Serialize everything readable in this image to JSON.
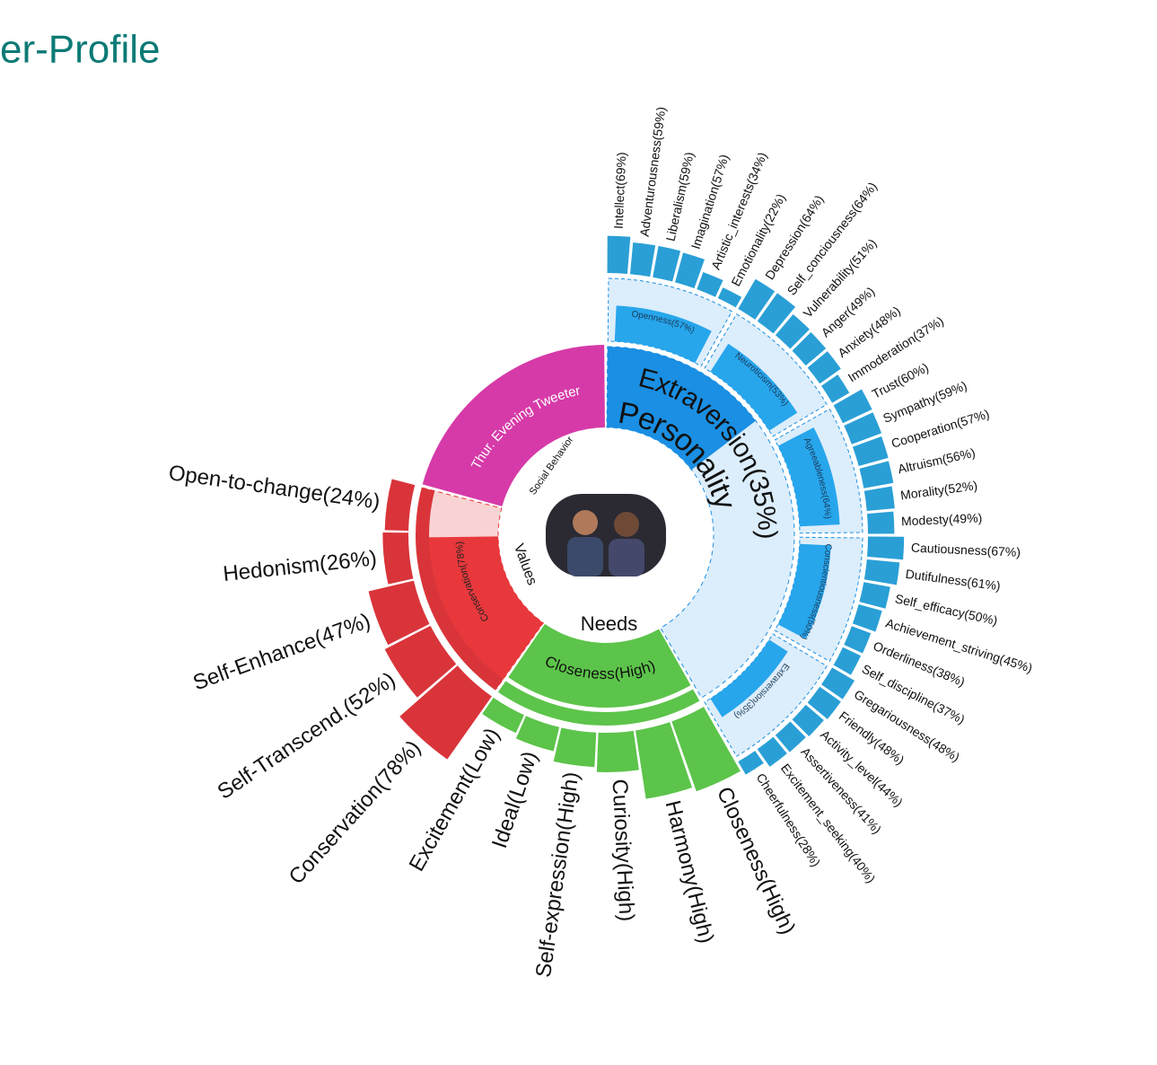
{
  "chart_data": {
    "type": "sunburst",
    "title": "er-Profile",
    "groups": [
      {
        "name": "Personality",
        "summary": "Extraversion(35%)",
        "summary_value": 35,
        "color": "#1a8fe3",
        "pale": "#dcedfb",
        "traits": {
          "labels": [
            "Openness(57%)",
            "Neuroticism(53%)",
            "Agreeableness(64%)",
            "Conscientiousness(50%)",
            "Extraversion(35%)"
          ],
          "values": [
            57,
            53,
            64,
            50,
            35
          ]
        },
        "facets": {
          "color": "#2a9fd6",
          "labels": [
            "Intellect(69%)",
            "Adventurousness(59%)",
            "Liberalism(59%)",
            "Imagination(57%)",
            "Artistic_interests(34%)",
            "Emotionality(22%)",
            "Depression(64%)",
            "Self_conciousness(64%)",
            "Vulnerability(51%)",
            "Anger(49%)",
            "Anxiety(48%)",
            "Immoderation(37%)",
            "Trust(60%)",
            "Sympathy(59%)",
            "Cooperation(57%)",
            "Altruism(56%)",
            "Morality(52%)",
            "Modesty(49%)",
            "Cautiousness(67%)",
            "Dutifulness(61%)",
            "Self_efficacy(50%)",
            "Achievement_striving(45%)",
            "Orderliness(38%)",
            "Self_discipline(37%)",
            "Gregariousness(48%)",
            "Friendly(48%)",
            "Activity_level(44%)",
            "Assertiveness(41%)",
            "Excitement_seeking(40%)",
            "Cheerfulness(28%)"
          ],
          "values": [
            69,
            59,
            59,
            57,
            34,
            22,
            64,
            64,
            51,
            49,
            48,
            37,
            60,
            59,
            57,
            56,
            52,
            49,
            67,
            61,
            50,
            45,
            38,
            37,
            48,
            48,
            44,
            41,
            40,
            28
          ]
        }
      },
      {
        "name": "Needs",
        "summary": "Closeness(High)",
        "color": "#5cc44a",
        "facets": {
          "color": "#5cc44a",
          "labels": [
            "Closeness(High)",
            "Harmony(High)",
            "Curiosity(High)",
            "Self-expression(High)",
            "Ideal(Low)",
            "Excitement(Low)"
          ],
          "values": [
            75,
            70,
            40,
            35,
            25,
            20
          ]
        }
      },
      {
        "name": "Values",
        "summary": "Conservation(78%)",
        "summary_value": 78,
        "color": "#e8383c",
        "pale": "#f9d3d3",
        "facets": {
          "color": "#d9343a",
          "labels": [
            "Conservation(78%)",
            "Self-Transcend.(52%)",
            "Self-Enhance(47%)",
            "Hedonism(26%)",
            "Open-to-change(24%)"
          ],
          "values": [
            78,
            52,
            47,
            26,
            24
          ]
        }
      },
      {
        "name": "Social Behavior",
        "summary": "Thur. Evening Tweeter",
        "color": "#d63aa8"
      }
    ]
  }
}
